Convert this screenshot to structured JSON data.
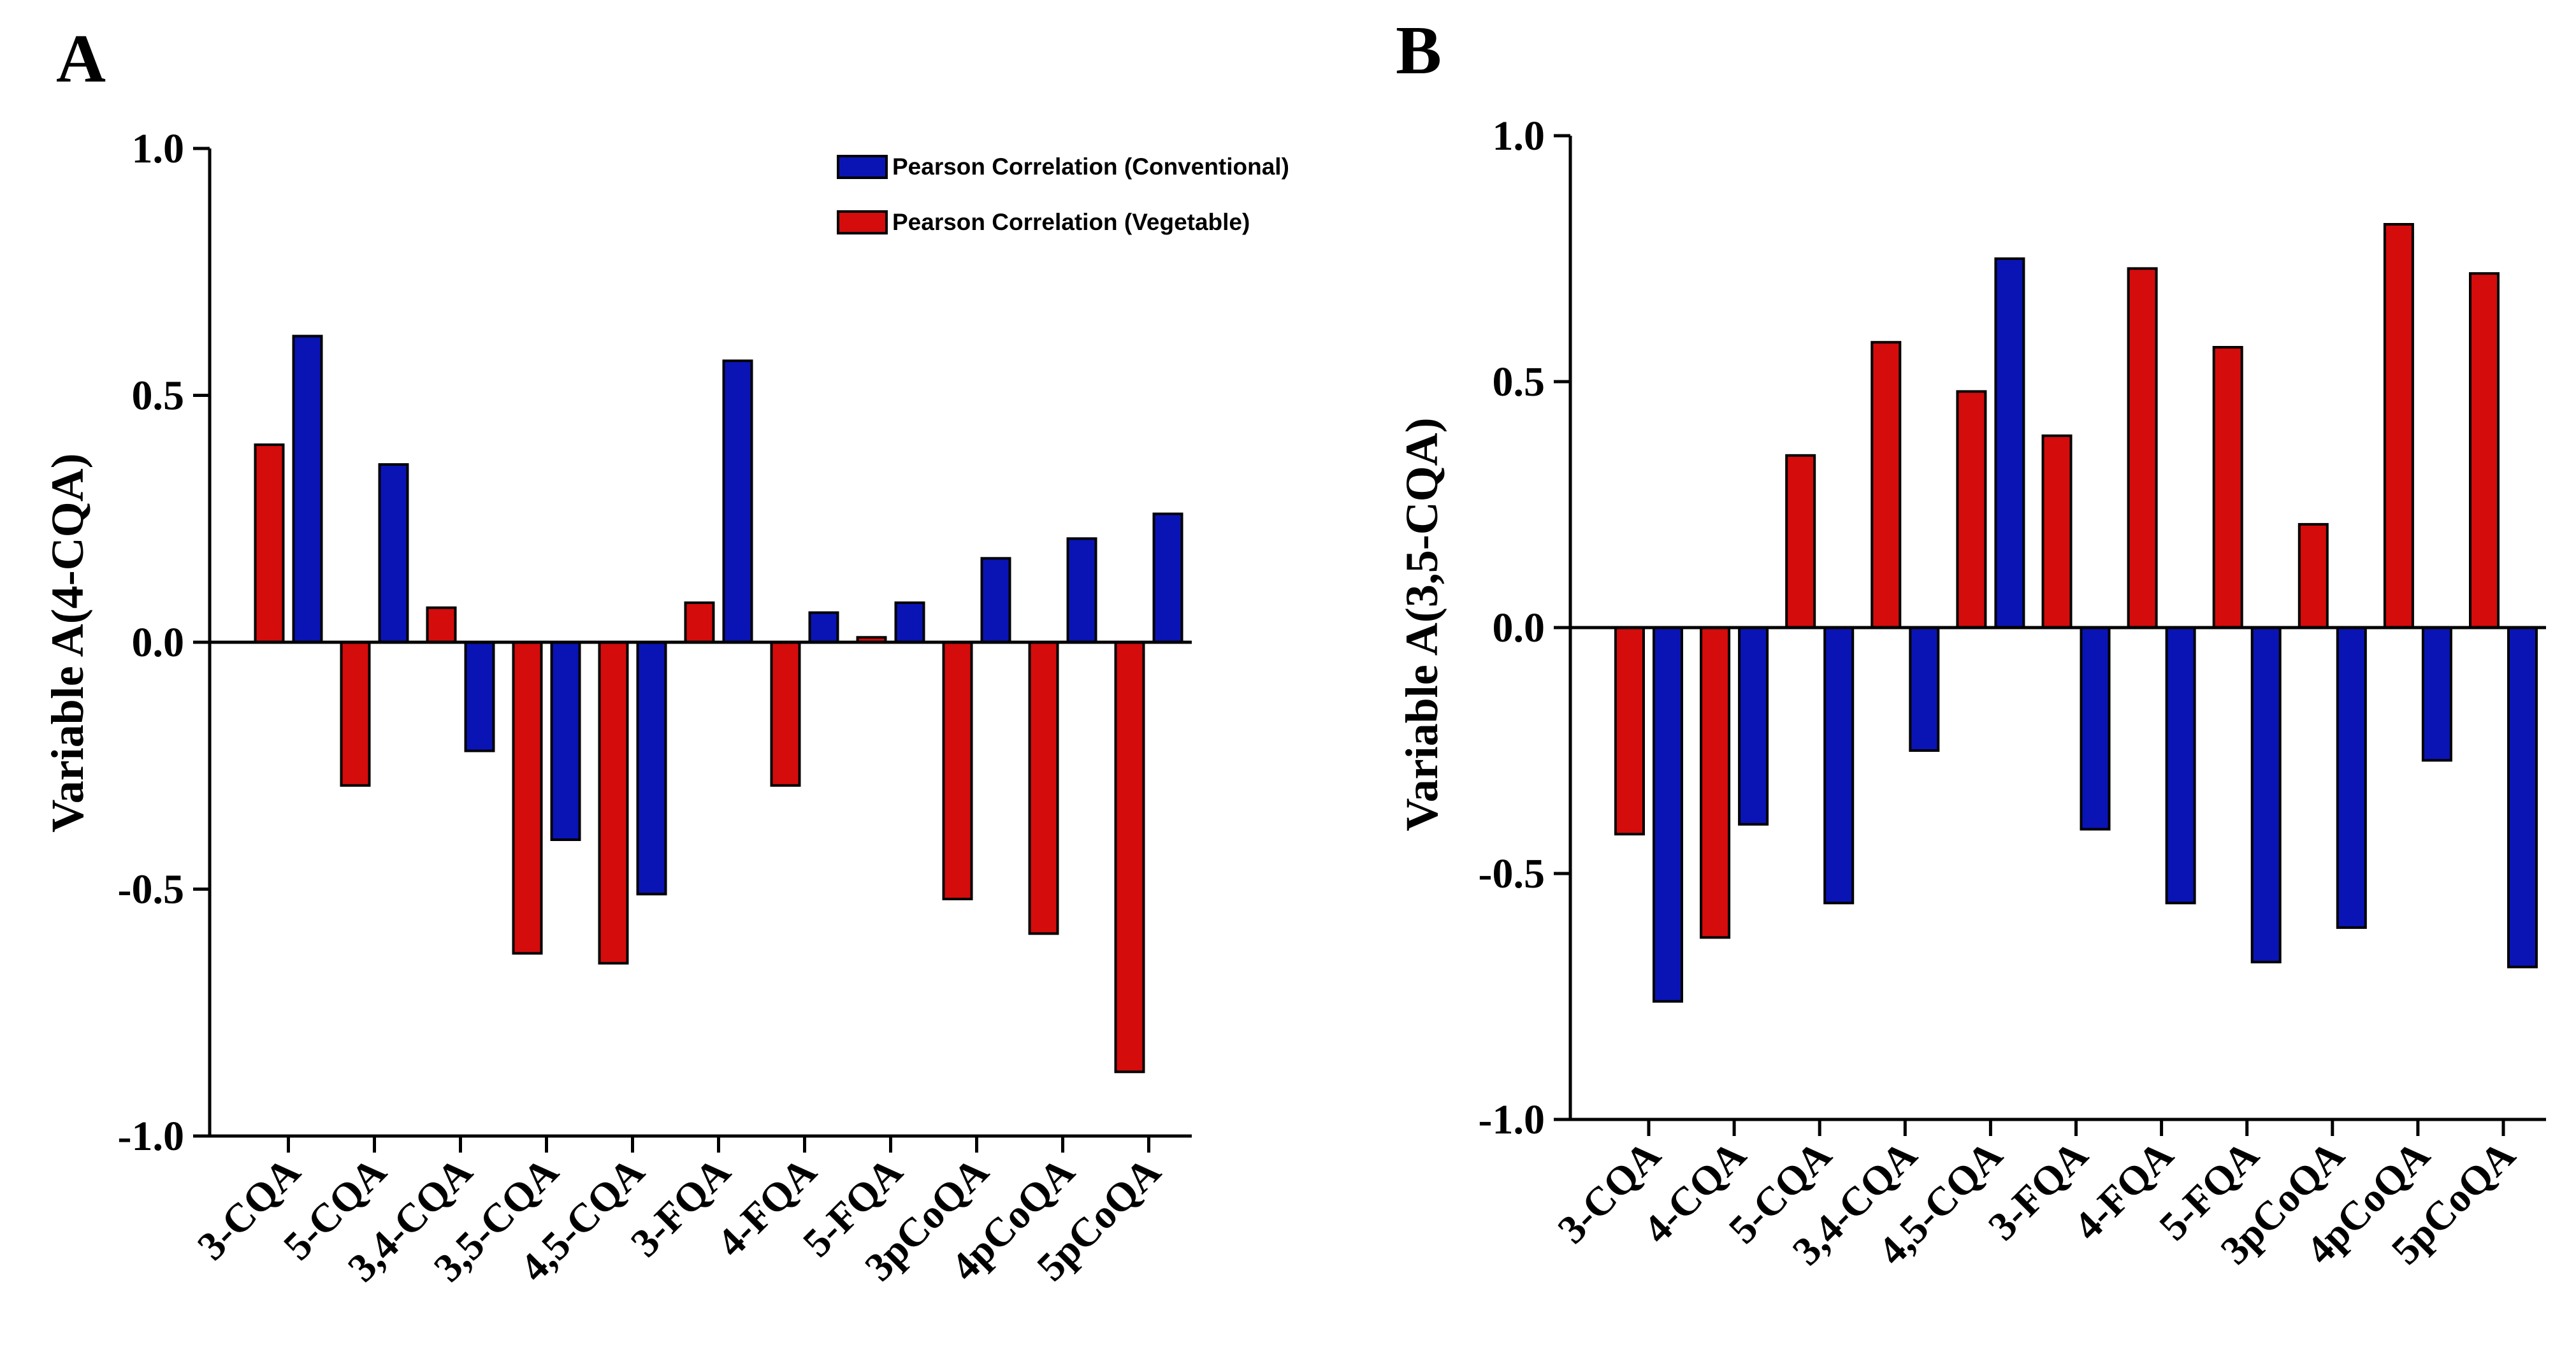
{
  "panels": [
    {
      "letter": "A"
    },
    {
      "letter": "B"
    }
  ],
  "legend": {
    "conventional": "Pearson Correlation (Conventional)",
    "vegetable": "Pearson Correlation (Vegetable)"
  },
  "colors": {
    "conventional": "#0a14b4",
    "vegetable": "#d40c0c"
  },
  "chart_data": [
    {
      "type": "bar",
      "panel": "A",
      "ylabel": "Variable A(4-CQA)",
      "xlabel": "",
      "ylim": [
        -1.0,
        1.0
      ],
      "yticks": [
        1.0,
        0.5,
        0.0,
        -0.5,
        -1.0
      ],
      "ytick_labels": [
        "1.0",
        "0.5",
        "0.0",
        "-0.5",
        "-1.0"
      ],
      "categories": [
        "3-CQA",
        "5-CQA",
        "3,4-CQA",
        "3,5-CQA",
        "4,5-CQA",
        "3-FQA",
        "4-FQA",
        "5-FQA",
        "3pCoQA",
        "4pCoQA",
        "5pCoQA"
      ],
      "series": [
        {
          "name": "Pearson Correlation (Vegetable)",
          "values": [
            0.4,
            -0.29,
            0.07,
            -0.63,
            -0.65,
            0.08,
            -0.29,
            0.01,
            -0.52,
            -0.59,
            -0.87
          ]
        },
        {
          "name": "Pearson Correlation (Conventional)",
          "values": [
            0.62,
            0.36,
            -0.22,
            -0.4,
            -0.51,
            0.57,
            0.06,
            0.08,
            0.17,
            0.21,
            0.26
          ]
        }
      ],
      "legend_position": "top-right"
    },
    {
      "type": "bar",
      "panel": "B",
      "ylabel": "Variable A(3,5-CQA)",
      "xlabel": "",
      "ylim": [
        -1.0,
        1.0
      ],
      "yticks": [
        1.0,
        0.5,
        0.0,
        -0.5,
        -1.0
      ],
      "ytick_labels": [
        "1.0",
        "0.5",
        "0.0",
        "-0.5",
        "-1.0"
      ],
      "categories": [
        "3-CQA",
        "4-CQA",
        "5-CQA",
        "3,4-CQA",
        "4,5-CQA",
        "3-FQA",
        "4-FQA",
        "5-FQA",
        "3pCoQA",
        "4pCoQA",
        "5pCoQA"
      ],
      "series": [
        {
          "name": "Pearson Correlation (Vegetable)",
          "values": [
            -0.42,
            -0.63,
            0.35,
            0.58,
            0.48,
            0.39,
            0.73,
            0.57,
            0.21,
            0.82,
            0.72
          ]
        },
        {
          "name": "Pearson Correlation (Conventional)",
          "values": [
            -0.76,
            -0.4,
            -0.56,
            -0.25,
            0.75,
            -0.41,
            -0.56,
            -0.68,
            -0.61,
            -0.27,
            -0.69
          ]
        }
      ]
    }
  ]
}
